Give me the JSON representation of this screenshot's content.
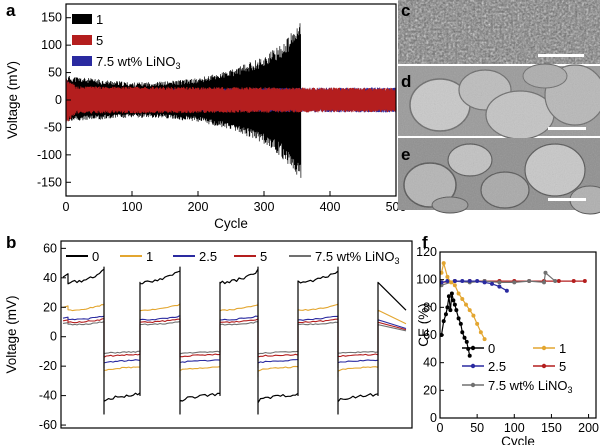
{
  "panels": {
    "a": "a",
    "b": "b",
    "c": "c",
    "d": "d",
    "e": "e",
    "f": "f"
  },
  "chart_data": [
    {
      "id": "a",
      "type": "line",
      "xlabel": "Cycle",
      "ylabel": "Voltage (mV)",
      "xlim": [
        0,
        500
      ],
      "ylim": [
        -175,
        175
      ],
      "xticks": [
        "0",
        "100",
        "200",
        "300",
        "400",
        "500"
      ],
      "yticks": [
        "150",
        "100",
        "50",
        "0",
        "-50",
        "-100",
        "-150"
      ],
      "legend_position": "top-left",
      "series": [
        {
          "name": "1",
          "color": "#000000",
          "end_cycle": 356,
          "envelope": [
            [
              0,
              45
            ],
            [
              50,
              38
            ],
            [
              100,
              32
            ],
            [
              150,
              34
            ],
            [
              200,
              40
            ],
            [
              250,
              55
            ],
            [
              300,
              80
            ],
            [
              330,
              105
            ],
            [
              356,
              145
            ]
          ],
          "envelope_low": [
            [
              0,
              -40
            ],
            [
              50,
              -36
            ],
            [
              100,
              -32
            ],
            [
              150,
              -34
            ],
            [
              200,
              -40
            ],
            [
              250,
              -55
            ],
            [
              300,
              -80
            ],
            [
              330,
              -110
            ],
            [
              356,
              -148
            ]
          ]
        },
        {
          "name": "5",
          "color": "#b41e1e",
          "end_cycle": 500,
          "envelope": [
            [
              0,
              25
            ],
            [
              500,
              22
            ]
          ]
        },
        {
          "name": "7.5 wt% LiNO3",
          "color": "#2a2aa0",
          "end_cycle": 500,
          "envelope": [
            [
              0,
              20
            ],
            [
              500,
              23
            ]
          ]
        }
      ]
    },
    {
      "id": "b",
      "type": "line",
      "xlabel": "",
      "ylabel": "Voltage (mV)",
      "ylim": [
        -62,
        65
      ],
      "yticks": [
        "60",
        "40",
        "20",
        "0",
        "-20",
        "-40",
        "-60"
      ],
      "legend_position": "top",
      "series": [
        {
          "name": "0",
          "color": "#000000",
          "pos": 45,
          "neg": -42
        },
        {
          "name": "1",
          "color": "#e3a630",
          "pos": 22,
          "neg": -22
        },
        {
          "name": "2.5",
          "color": "#2a2aa0",
          "pos": 14,
          "neg": -17
        },
        {
          "name": "5",
          "color": "#b41e1e",
          "pos": 12,
          "neg": -13
        },
        {
          "name": "7.5 wt% LiNO3",
          "color": "#707070",
          "pos": 10,
          "neg": -11
        }
      ]
    },
    {
      "id": "f",
      "type": "scatter",
      "xlabel": "Cycle",
      "ylabel": "CE (%)",
      "xlim": [
        0,
        210
      ],
      "ylim": [
        0,
        120
      ],
      "xticks": [
        "0",
        "50",
        "100",
        "150",
        "200"
      ],
      "yticks": [
        "120",
        "100",
        "80",
        "60",
        "40",
        "20",
        "0"
      ],
      "legend_position": "lower-left",
      "series": [
        {
          "name": "0",
          "color": "#000000",
          "points": [
            [
              2,
              60
            ],
            [
              5,
              70
            ],
            [
              8,
              75
            ],
            [
              10,
              80
            ],
            [
              12,
              88
            ],
            [
              14,
              78
            ],
            [
              16,
              90
            ],
            [
              18,
              85
            ],
            [
              20,
              82
            ],
            [
              22,
              78
            ],
            [
              25,
              72
            ],
            [
              28,
              68
            ],
            [
              30,
              62
            ],
            [
              33,
              58
            ],
            [
              36,
              55
            ],
            [
              38,
              50
            ],
            [
              40,
              45
            ]
          ]
        },
        {
          "name": "1",
          "color": "#e3a630",
          "points": [
            [
              2,
              105
            ],
            [
              5,
              112
            ],
            [
              10,
              102
            ],
            [
              15,
              98
            ],
            [
              20,
              96
            ],
            [
              25,
              90
            ],
            [
              30,
              86
            ],
            [
              35,
              82
            ],
            [
              40,
              78
            ],
            [
              45,
              74
            ],
            [
              50,
              68
            ],
            [
              55,
              62
            ],
            [
              60,
              57
            ]
          ]
        },
        {
          "name": "2.5",
          "color": "#2a2aa0",
          "points": [
            [
              2,
              98
            ],
            [
              10,
              99
            ],
            [
              20,
              99
            ],
            [
              30,
              99
            ],
            [
              40,
              99
            ],
            [
              50,
              99
            ],
            [
              60,
              98
            ],
            [
              70,
              97
            ],
            [
              80,
              95
            ],
            [
              90,
              92
            ]
          ]
        },
        {
          "name": "5",
          "color": "#b41e1e",
          "points": [
            [
              2,
              98
            ],
            [
              20,
              99
            ],
            [
              40,
              99
            ],
            [
              60,
              99
            ],
            [
              80,
              99
            ],
            [
              100,
              99
            ],
            [
              120,
              99
            ],
            [
              140,
              99
            ],
            [
              160,
              99
            ],
            [
              180,
              99
            ],
            [
              195,
              99
            ]
          ]
        },
        {
          "name": "7.5 wt% LiNO3",
          "color": "#707070",
          "points": [
            [
              2,
              96
            ],
            [
              20,
              99
            ],
            [
              40,
              98
            ],
            [
              60,
              99
            ],
            [
              80,
              98
            ],
            [
              100,
              98
            ],
            [
              120,
              99
            ],
            [
              140,
              98
            ],
            [
              142,
              105
            ],
            [
              155,
              99
            ]
          ]
        }
      ]
    }
  ]
}
